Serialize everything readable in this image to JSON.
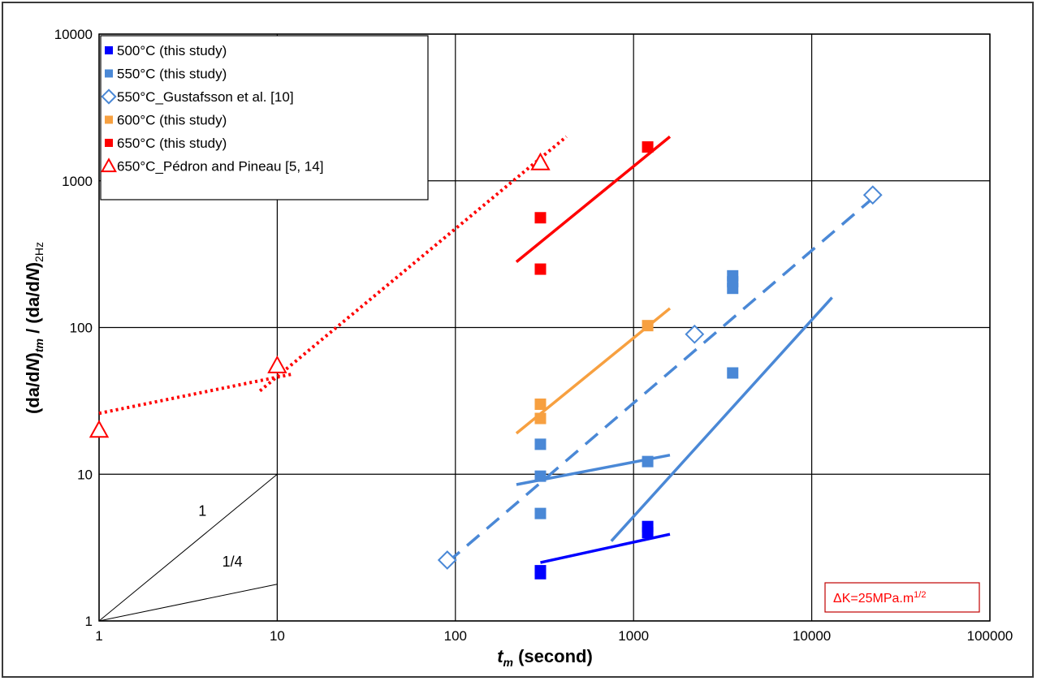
{
  "chart_data": {
    "type": "scatter",
    "xscale": "log",
    "yscale": "log",
    "xlim": [
      1,
      100000
    ],
    "ylim": [
      1,
      10000
    ],
    "grid": true,
    "legend_position": "top-left",
    "xlabel": {
      "pre": "t",
      "sub": "m",
      "post": " (second)"
    },
    "ylabel": {
      "p1": "(da/d",
      "p2": "N",
      "p3": ")",
      "s1": "tm",
      "p4": " / (da/d",
      "p5": "N",
      "p6": ")",
      "s2": "2Hz"
    },
    "x_ticks": [
      {
        "value": 1,
        "label": "1"
      },
      {
        "value": 10,
        "label": "10"
      },
      {
        "value": 100,
        "label": "100"
      },
      {
        "value": 1000,
        "label": "1000"
      },
      {
        "value": 10000,
        "label": "10000"
      },
      {
        "value": 100000,
        "label": "100000"
      }
    ],
    "y_ticks": [
      {
        "value": 1,
        "label": "1"
      },
      {
        "value": 10,
        "label": "10"
      },
      {
        "value": 100,
        "label": "100"
      },
      {
        "value": 1000,
        "label": "1000"
      },
      {
        "value": 10000,
        "label": "10000"
      }
    ],
    "series": [
      {
        "name": "500°C (this study)",
        "color": "#0000ff",
        "marker": "square-filled",
        "x": [
          300,
          300,
          1200,
          1200
        ],
        "y": [
          2.1,
          2.2,
          4.0,
          4.4
        ]
      },
      {
        "name": "550°C (this study)",
        "color": "#4a88d6",
        "marker": "square-filled",
        "x": [
          300,
          300,
          300,
          1200,
          3600,
          3600,
          3600,
          3600
        ],
        "y": [
          5.4,
          9.7,
          16,
          12.2,
          49,
          185,
          205,
          225
        ]
      },
      {
        "name": "550°C_Gustafsson et al. [10]",
        "color": "#4a88d6",
        "marker": "diamond-open",
        "x": [
          90,
          2200,
          22000
        ],
        "y": [
          2.6,
          90,
          800
        ]
      },
      {
        "name": "600°C (this study)",
        "color": "#f7a040",
        "marker": "square-filled",
        "x": [
          300,
          300,
          1200
        ],
        "y": [
          24,
          30,
          103
        ]
      },
      {
        "name": "650°C (this study)",
        "color": "#ff0000",
        "marker": "square-filled",
        "x": [
          300,
          300,
          1200
        ],
        "y": [
          250,
          560,
          1700
        ]
      },
      {
        "name": "650°C_Pédron and Pineau [5, 14]",
        "color": "#ff0000",
        "marker": "triangle-open",
        "x": [
          1,
          10,
          300
        ],
        "y": [
          20,
          55,
          1330
        ]
      }
    ],
    "trend_lines": [
      {
        "color": "#0000ff",
        "style": "solid",
        "x": [
          300,
          1600
        ],
        "y": [
          2.5,
          3.9
        ]
      },
      {
        "color": "#4a88d6",
        "style": "solid",
        "x": [
          220,
          1600
        ],
        "y": [
          8.5,
          13.5
        ]
      },
      {
        "color": "#4a88d6",
        "style": "solid",
        "x": [
          750,
          13000
        ],
        "y": [
          3.5,
          160
        ]
      },
      {
        "color": "#4a88d6",
        "style": "dashed",
        "x": [
          90,
          22000
        ],
        "y": [
          2.5,
          760
        ]
      },
      {
        "color": "#f7a040",
        "style": "solid",
        "x": [
          220,
          1600
        ],
        "y": [
          19,
          135
        ]
      },
      {
        "color": "#ff0000",
        "style": "solid",
        "x": [
          220,
          1600
        ],
        "y": [
          280,
          2000
        ]
      },
      {
        "color": "#ff0000",
        "style": "dotted",
        "x": [
          1,
          12
        ],
        "y": [
          26,
          48
        ]
      },
      {
        "color": "#ff0000",
        "style": "dotted",
        "x": [
          8,
          420
        ],
        "y": [
          37,
          2000
        ]
      }
    ],
    "slope_triangle": {
      "color": "#000000",
      "lines": [
        {
          "x": [
            1,
            10
          ],
          "y": [
            1,
            10
          ]
        },
        {
          "x": [
            1,
            10
          ],
          "y": [
            1,
            1.78
          ]
        },
        {
          "x": [
            10,
            10
          ],
          "y": [
            1,
            10
          ]
        }
      ],
      "labels": [
        {
          "text": "1",
          "x": 3.8,
          "y": 5.2
        },
        {
          "text": "1/4",
          "x": 5.6,
          "y": 2.35
        }
      ]
    },
    "annotation": {
      "pre": "ΔK=25MPa.m",
      "sup": "1/2",
      "color": "#ff0000"
    }
  }
}
